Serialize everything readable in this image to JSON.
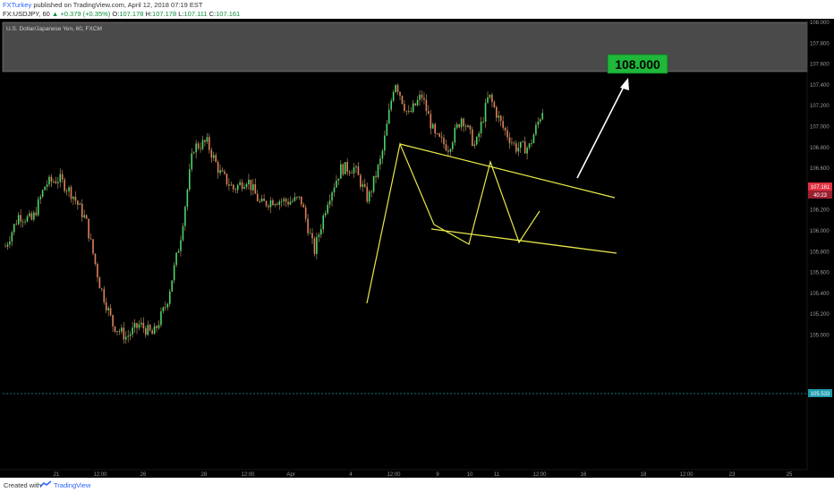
{
  "header": {
    "author": "FXTurkey",
    "published": "published on TradingView.com, April 12, 2018 07:19 EST",
    "symbol": "FX:USDJPY, 60",
    "change": "▲ +0.379 (+0.35%)",
    "o_label": "O:",
    "o_value": "107.178",
    "h_label": "H:",
    "h_value": "107.178",
    "l_label": "L:",
    "l_value": "107.111",
    "c_label": "C:",
    "c_value": "107.161"
  },
  "footer": {
    "created": "Created with",
    "brand": "TradingView"
  },
  "colors": {
    "background": "#000000",
    "zone": "#4a4a4a",
    "up": "#4bd56b",
    "down": "#e0805a",
    "wick": "#c9a36a",
    "pattern": "#e8e84a",
    "target_box": "#1fb83a",
    "support": "#1e9cb0",
    "price_tag": "#e03040"
  },
  "chart_data": {
    "type": "candlestick",
    "title": "U.S. Dollar/Japanese Yen, 60, FXCM",
    "ylim": [
      104.96,
      108.6
    ],
    "yticks": [
      "108.400",
      "108.200",
      "108.000",
      "107.800",
      "107.600",
      "107.400",
      "107.200",
      "107.000",
      "106.800",
      "106.600",
      "106.400",
      "106.200",
      "106.000",
      "105.800",
      "105.600",
      "105.400",
      "105.200",
      "105.000"
    ],
    "xticks": [
      "21",
      "12:00",
      "26",
      "28",
      "12:00",
      "Apr",
      "4",
      "12:00",
      "9",
      "10",
      "11",
      "12:00",
      "16",
      "18",
      "12:00",
      "23",
      "25"
    ],
    "current_price": "107.161",
    "countdown": "40:23",
    "support_level": "105.533",
    "target_label": "108.000",
    "resistance_zone": [
      108.03,
      108.6
    ],
    "close_path": [
      105.85,
      106.15,
      106.1,
      106.45,
      106.5,
      106.35,
      106.1,
      105.5,
      105.1,
      104.98,
      105.1,
      105.0,
      105.3,
      105.9,
      106.8,
      106.85,
      106.55,
      106.4,
      106.5,
      106.25,
      106.3,
      106.28,
      106.3,
      105.8,
      106.3,
      106.6,
      106.6,
      106.3,
      106.7,
      107.45,
      107.1,
      107.3,
      106.9,
      106.8,
      107.1,
      106.8,
      107.3,
      107.0,
      106.8,
      106.8,
      107.16
    ],
    "pattern_lines": [
      {
        "name": "upper-trendline",
        "points": [
          [
            "12:00",
            107.47
          ],
          [
            "16",
            107.09
          ]
        ]
      },
      {
        "name": "lower-trendline",
        "points": [
          [
            "9",
            106.81
          ],
          [
            "16",
            106.63
          ]
        ]
      }
    ]
  }
}
